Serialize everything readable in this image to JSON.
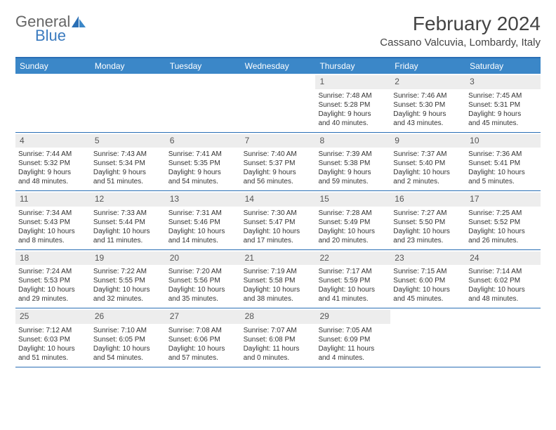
{
  "brand": {
    "part1": "General",
    "part2": "Blue"
  },
  "title": "February 2024",
  "location": "Cassano Valcuvia, Lombardy, Italy",
  "colors": {
    "header_bg": "#3b87c8",
    "border": "#2a6fb5",
    "daynum_bg": "#ededed",
    "brand_gray": "#666666",
    "brand_blue": "#3b7bbf"
  },
  "day_names": [
    "Sunday",
    "Monday",
    "Tuesday",
    "Wednesday",
    "Thursday",
    "Friday",
    "Saturday"
  ],
  "weeks": [
    [
      {
        "empty": true
      },
      {
        "empty": true
      },
      {
        "empty": true
      },
      {
        "empty": true
      },
      {
        "n": "1",
        "sr": "Sunrise: 7:48 AM",
        "ss": "Sunset: 5:28 PM",
        "d1": "Daylight: 9 hours",
        "d2": "and 40 minutes."
      },
      {
        "n": "2",
        "sr": "Sunrise: 7:46 AM",
        "ss": "Sunset: 5:30 PM",
        "d1": "Daylight: 9 hours",
        "d2": "and 43 minutes."
      },
      {
        "n": "3",
        "sr": "Sunrise: 7:45 AM",
        "ss": "Sunset: 5:31 PM",
        "d1": "Daylight: 9 hours",
        "d2": "and 45 minutes."
      }
    ],
    [
      {
        "n": "4",
        "sr": "Sunrise: 7:44 AM",
        "ss": "Sunset: 5:32 PM",
        "d1": "Daylight: 9 hours",
        "d2": "and 48 minutes."
      },
      {
        "n": "5",
        "sr": "Sunrise: 7:43 AM",
        "ss": "Sunset: 5:34 PM",
        "d1": "Daylight: 9 hours",
        "d2": "and 51 minutes."
      },
      {
        "n": "6",
        "sr": "Sunrise: 7:41 AM",
        "ss": "Sunset: 5:35 PM",
        "d1": "Daylight: 9 hours",
        "d2": "and 54 minutes."
      },
      {
        "n": "7",
        "sr": "Sunrise: 7:40 AM",
        "ss": "Sunset: 5:37 PM",
        "d1": "Daylight: 9 hours",
        "d2": "and 56 minutes."
      },
      {
        "n": "8",
        "sr": "Sunrise: 7:39 AM",
        "ss": "Sunset: 5:38 PM",
        "d1": "Daylight: 9 hours",
        "d2": "and 59 minutes."
      },
      {
        "n": "9",
        "sr": "Sunrise: 7:37 AM",
        "ss": "Sunset: 5:40 PM",
        "d1": "Daylight: 10 hours",
        "d2": "and 2 minutes."
      },
      {
        "n": "10",
        "sr": "Sunrise: 7:36 AM",
        "ss": "Sunset: 5:41 PM",
        "d1": "Daylight: 10 hours",
        "d2": "and 5 minutes."
      }
    ],
    [
      {
        "n": "11",
        "sr": "Sunrise: 7:34 AM",
        "ss": "Sunset: 5:43 PM",
        "d1": "Daylight: 10 hours",
        "d2": "and 8 minutes."
      },
      {
        "n": "12",
        "sr": "Sunrise: 7:33 AM",
        "ss": "Sunset: 5:44 PM",
        "d1": "Daylight: 10 hours",
        "d2": "and 11 minutes."
      },
      {
        "n": "13",
        "sr": "Sunrise: 7:31 AM",
        "ss": "Sunset: 5:46 PM",
        "d1": "Daylight: 10 hours",
        "d2": "and 14 minutes."
      },
      {
        "n": "14",
        "sr": "Sunrise: 7:30 AM",
        "ss": "Sunset: 5:47 PM",
        "d1": "Daylight: 10 hours",
        "d2": "and 17 minutes."
      },
      {
        "n": "15",
        "sr": "Sunrise: 7:28 AM",
        "ss": "Sunset: 5:49 PM",
        "d1": "Daylight: 10 hours",
        "d2": "and 20 minutes."
      },
      {
        "n": "16",
        "sr": "Sunrise: 7:27 AM",
        "ss": "Sunset: 5:50 PM",
        "d1": "Daylight: 10 hours",
        "d2": "and 23 minutes."
      },
      {
        "n": "17",
        "sr": "Sunrise: 7:25 AM",
        "ss": "Sunset: 5:52 PM",
        "d1": "Daylight: 10 hours",
        "d2": "and 26 minutes."
      }
    ],
    [
      {
        "n": "18",
        "sr": "Sunrise: 7:24 AM",
        "ss": "Sunset: 5:53 PM",
        "d1": "Daylight: 10 hours",
        "d2": "and 29 minutes."
      },
      {
        "n": "19",
        "sr": "Sunrise: 7:22 AM",
        "ss": "Sunset: 5:55 PM",
        "d1": "Daylight: 10 hours",
        "d2": "and 32 minutes."
      },
      {
        "n": "20",
        "sr": "Sunrise: 7:20 AM",
        "ss": "Sunset: 5:56 PM",
        "d1": "Daylight: 10 hours",
        "d2": "and 35 minutes."
      },
      {
        "n": "21",
        "sr": "Sunrise: 7:19 AM",
        "ss": "Sunset: 5:58 PM",
        "d1": "Daylight: 10 hours",
        "d2": "and 38 minutes."
      },
      {
        "n": "22",
        "sr": "Sunrise: 7:17 AM",
        "ss": "Sunset: 5:59 PM",
        "d1": "Daylight: 10 hours",
        "d2": "and 41 minutes."
      },
      {
        "n": "23",
        "sr": "Sunrise: 7:15 AM",
        "ss": "Sunset: 6:00 PM",
        "d1": "Daylight: 10 hours",
        "d2": "and 45 minutes."
      },
      {
        "n": "24",
        "sr": "Sunrise: 7:14 AM",
        "ss": "Sunset: 6:02 PM",
        "d1": "Daylight: 10 hours",
        "d2": "and 48 minutes."
      }
    ],
    [
      {
        "n": "25",
        "sr": "Sunrise: 7:12 AM",
        "ss": "Sunset: 6:03 PM",
        "d1": "Daylight: 10 hours",
        "d2": "and 51 minutes."
      },
      {
        "n": "26",
        "sr": "Sunrise: 7:10 AM",
        "ss": "Sunset: 6:05 PM",
        "d1": "Daylight: 10 hours",
        "d2": "and 54 minutes."
      },
      {
        "n": "27",
        "sr": "Sunrise: 7:08 AM",
        "ss": "Sunset: 6:06 PM",
        "d1": "Daylight: 10 hours",
        "d2": "and 57 minutes."
      },
      {
        "n": "28",
        "sr": "Sunrise: 7:07 AM",
        "ss": "Sunset: 6:08 PM",
        "d1": "Daylight: 11 hours",
        "d2": "and 0 minutes."
      },
      {
        "n": "29",
        "sr": "Sunrise: 7:05 AM",
        "ss": "Sunset: 6:09 PM",
        "d1": "Daylight: 11 hours",
        "d2": "and 4 minutes."
      },
      {
        "empty": true
      },
      {
        "empty": true
      }
    ]
  ]
}
